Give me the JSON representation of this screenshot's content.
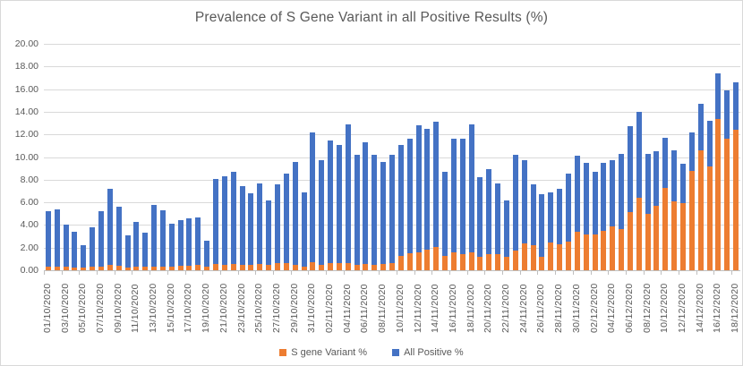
{
  "chart": {
    "title": "Prevalence of S Gene Variant in all Positive Results (%)",
    "colors": {
      "s_gene_variant": "#ED7D31",
      "all_positive": "#4472C4",
      "gridline": "#D9D9D9",
      "axis_text": "#595959"
    },
    "legend": {
      "position": "bottom-center",
      "items": [
        {
          "label": "S gene Variant %",
          "color": "#ED7D31"
        },
        {
          "label": "All Positive %",
          "color": "#4472C4"
        }
      ]
    },
    "y_axis": {
      "min": 0,
      "max": 20,
      "step": 2,
      "tick_labels": [
        "20.00",
        "18.00",
        "16.00",
        "14.00",
        "12.00",
        "10.00",
        "8.00",
        "6.00",
        "4.00",
        "2.00",
        "0.00"
      ]
    },
    "x_axis": {
      "label_every_n_bars": 2,
      "visible_labels": [
        "01/10/2020",
        "03/10/2020",
        "05/10/2020",
        "07/10/2020",
        "09/10/2020",
        "11/10/2020",
        "13/10/2020",
        "15/10/2020",
        "17/10/2020",
        "19/10/2020",
        "21/10/2020",
        "23/10/2020",
        "25/10/2020",
        "27/10/2020",
        "29/10/2020",
        "31/10/2020",
        "02/11/2020",
        "04/11/2020",
        "06/11/2020",
        "08/11/2020",
        "10/11/2020",
        "12/11/2020",
        "14/11/2020",
        "16/11/2020",
        "18/11/2020",
        "20/11/2020",
        "22/11/2020",
        "24/11/2020",
        "26/11/2020",
        "28/11/2020",
        "30/11/2020",
        "02/12/2020",
        "04/12/2020",
        "06/12/2020",
        "08/12/2020",
        "10/12/2020",
        "12/12/2020",
        "14/12/2020",
        "16/12/2020",
        "18/12/2020"
      ]
    }
  },
  "chart_data": {
    "type": "bar",
    "subtype": "overlap",
    "note": "Orange (S gene Variant %) is drawn from zero in front of / below blue; blue bar top equals All Positive %. Daily bars, axis labelled every second day.",
    "title": "Prevalence of S Gene Variant in all Positive Results (%)",
    "xlabel": "",
    "ylabel": "",
    "ylim": [
      0,
      20
    ],
    "grid": true,
    "legend_position": "bottom",
    "categories": [
      "01/10/2020",
      "02/10/2020",
      "03/10/2020",
      "04/10/2020",
      "05/10/2020",
      "06/10/2020",
      "07/10/2020",
      "08/10/2020",
      "09/10/2020",
      "10/10/2020",
      "11/10/2020",
      "12/10/2020",
      "13/10/2020",
      "14/10/2020",
      "15/10/2020",
      "16/10/2020",
      "17/10/2020",
      "18/10/2020",
      "19/10/2020",
      "20/10/2020",
      "21/10/2020",
      "22/10/2020",
      "23/10/2020",
      "24/10/2020",
      "25/10/2020",
      "26/10/2020",
      "27/10/2020",
      "28/10/2020",
      "29/10/2020",
      "30/10/2020",
      "31/10/2020",
      "01/11/2020",
      "02/11/2020",
      "03/11/2020",
      "04/11/2020",
      "05/11/2020",
      "06/11/2020",
      "07/11/2020",
      "08/11/2020",
      "09/11/2020",
      "10/11/2020",
      "11/11/2020",
      "12/11/2020",
      "13/11/2020",
      "14/11/2020",
      "15/11/2020",
      "16/11/2020",
      "17/11/2020",
      "18/11/2020",
      "19/11/2020",
      "20/11/2020",
      "21/11/2020",
      "22/11/2020",
      "23/11/2020",
      "24/11/2020",
      "25/11/2020",
      "26/11/2020",
      "27/11/2020",
      "28/11/2020",
      "29/11/2020",
      "30/11/2020",
      "01/12/2020",
      "02/12/2020",
      "03/12/2020",
      "04/12/2020",
      "05/12/2020",
      "06/12/2020",
      "07/12/2020",
      "08/12/2020",
      "09/12/2020",
      "10/12/2020",
      "11/12/2020",
      "12/12/2020",
      "13/12/2020",
      "14/12/2020",
      "15/12/2020",
      "16/12/2020",
      "17/12/2020",
      "18/12/2020"
    ],
    "series": [
      {
        "name": "S gene Variant %",
        "color": "#ED7D31",
        "values": [
          0.35,
          0.3,
          0.3,
          0.25,
          0.2,
          0.3,
          0.35,
          0.5,
          0.4,
          0.25,
          0.3,
          0.3,
          0.3,
          0.3,
          0.35,
          0.4,
          0.4,
          0.45,
          0.3,
          0.55,
          0.5,
          0.55,
          0.5,
          0.45,
          0.55,
          0.45,
          0.6,
          0.6,
          0.5,
          0.35,
          0.7,
          0.5,
          0.6,
          0.6,
          0.65,
          0.5,
          0.55,
          0.5,
          0.55,
          0.6,
          1.3,
          1.5,
          1.6,
          1.8,
          2.05,
          1.3,
          1.6,
          1.45,
          1.6,
          1.15,
          1.45,
          1.45,
          1.2,
          1.7,
          2.4,
          2.25,
          1.2,
          2.45,
          2.3,
          2.5,
          3.4,
          3.2,
          3.2,
          3.5,
          3.85,
          3.65,
          5.1,
          6.4,
          4.95,
          5.7,
          7.3,
          6.1,
          5.9,
          8.75,
          10.6,
          9.2,
          13.35,
          11.65,
          12.4
        ]
      },
      {
        "name": "All Positive %",
        "color": "#4472C4",
        "values": [
          5.2,
          5.4,
          4.0,
          3.4,
          2.2,
          3.8,
          5.2,
          7.2,
          5.6,
          3.1,
          4.3,
          3.3,
          5.8,
          5.3,
          4.1,
          4.4,
          4.6,
          4.7,
          2.6,
          8.1,
          8.3,
          8.7,
          7.4,
          6.8,
          7.7,
          6.2,
          7.6,
          8.5,
          9.6,
          6.9,
          12.2,
          9.7,
          11.5,
          11.1,
          12.9,
          10.2,
          11.3,
          10.2,
          9.6,
          10.2,
          11.1,
          11.6,
          12.8,
          12.5,
          13.1,
          8.7,
          11.6,
          11.6,
          12.9,
          8.2,
          8.9,
          7.7,
          6.2,
          10.2,
          9.7,
          7.6,
          6.7,
          6.9,
          7.2,
          8.5,
          10.1,
          9.5,
          8.7,
          9.5,
          9.7,
          10.3,
          12.7,
          14.0,
          10.3,
          10.5,
          11.7,
          10.6,
          9.4,
          12.2,
          14.7,
          13.2,
          17.4,
          15.9,
          16.6
        ]
      }
    ]
  }
}
